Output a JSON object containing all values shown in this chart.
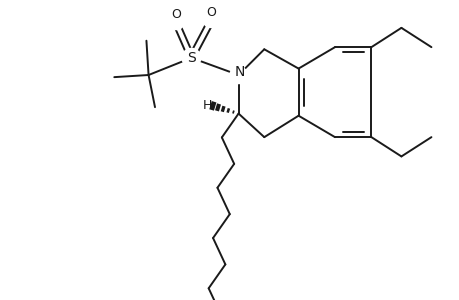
{
  "bg_color": "#ffffff",
  "line_color": "#1a1a1a",
  "line_width": 1.4,
  "figsize": [
    4.6,
    3.0
  ],
  "dpi": 100,
  "xlim": [
    -4.8,
    5.5
  ],
  "ylim": [
    -3.8,
    3.2
  ]
}
